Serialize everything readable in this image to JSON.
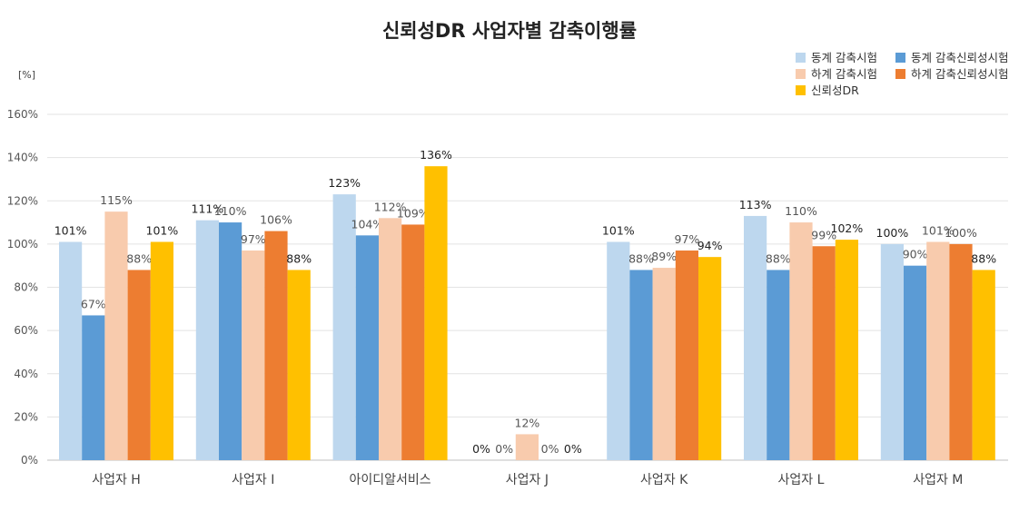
{
  "chart_data": {
    "type": "bar",
    "title": "신뢰성DR 사업자별 감축이행률",
    "ylabel": "[%]",
    "xlabel": "",
    "ylim": [
      0,
      160
    ],
    "y_ticks": [
      "0%",
      "20%",
      "40%",
      "60%",
      "80%",
      "100%",
      "120%",
      "140%",
      "160%"
    ],
    "y_tick_values": [
      0,
      20,
      40,
      60,
      80,
      100,
      120,
      140,
      160
    ],
    "grid": true,
    "legend_position": "top-right",
    "categories": [
      "사업자 H",
      "사업자 I",
      "아이디알서비스",
      "사업자 J",
      "사업자 K",
      "사업자 L",
      "사업자 M"
    ],
    "series": [
      {
        "name": "동계 감축시험",
        "color": "#BDD7EE",
        "values": [
          101,
          111,
          123,
          0,
          101,
          113,
          100
        ],
        "labels": [
          "101%",
          "111%",
          "123%",
          "0%",
          "101%",
          "113%",
          "100%"
        ]
      },
      {
        "name": "동계 감축신뢰성시험",
        "color": "#5B9BD5",
        "values": [
          67,
          110,
          104,
          0,
          88,
          88,
          90
        ],
        "labels": [
          "67%",
          "110%",
          "104%",
          "0%",
          "88%",
          "88%",
          "90%"
        ]
      },
      {
        "name": "하계 감축시험",
        "color": "#F8CBAD",
        "values": [
          115,
          97,
          112,
          12,
          89,
          110,
          101
        ],
        "labels": [
          "115%",
          "97%",
          "112%",
          "12%",
          "89%",
          "110%",
          "101%"
        ]
      },
      {
        "name": "하계 감축신뢰성시험",
        "color": "#ED7D31",
        "values": [
          88,
          106,
          109,
          0,
          97,
          99,
          100
        ],
        "labels": [
          "88%",
          "106%",
          "109%",
          "0%",
          "97%",
          "99%",
          "100%"
        ]
      },
      {
        "name": "신뢰성DR",
        "color": "#FFC000",
        "values": [
          101,
          88,
          136,
          0,
          94,
          102,
          88
        ],
        "labels": [
          "101%",
          "88%",
          "136%",
          "0%",
          "94%",
          "102%",
          "88%"
        ]
      }
    ]
  }
}
